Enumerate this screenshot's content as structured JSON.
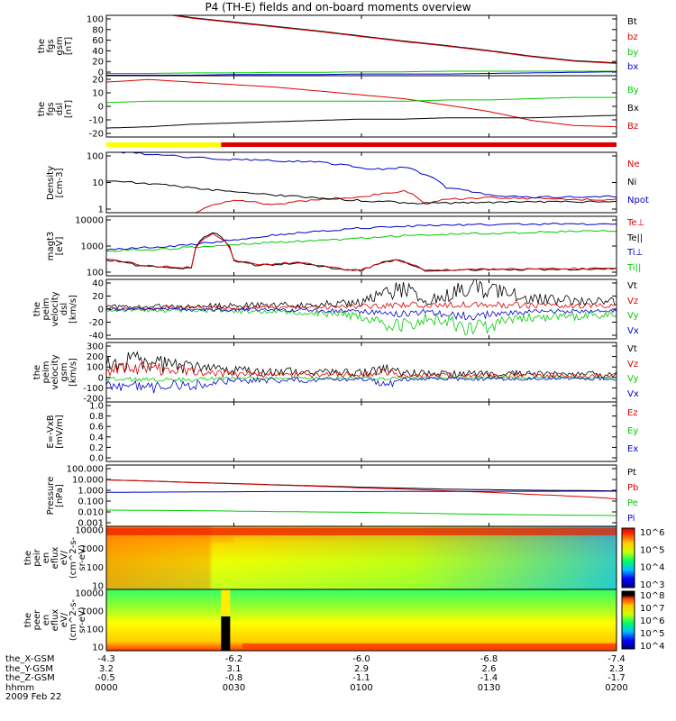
{
  "title": "P4 (TH-E) fields and on-board moments overview",
  "date_label": "2009 Feb 22",
  "colors": {
    "black": "#000000",
    "red": "#dd0000",
    "green": "#00cc00",
    "blue": "#0000cc",
    "yellow": "#ffff00"
  },
  "time_axis": {
    "tick_labels": [
      {
        "name": "the_X-GSM",
        "values": [
          "-4.3",
          "-6.2",
          "-6.0",
          "-6.8",
          "-7.4"
        ]
      },
      {
        "name": "the_Y-GSM",
        "values": [
          "3.2",
          "3.1",
          "2.9",
          "2.6",
          "2.3"
        ]
      },
      {
        "name": "the_Z-GSM",
        "values": [
          "-0.5",
          "-0.8",
          "-1.1",
          "-1.4",
          "-1.7"
        ]
      },
      {
        "name": "hhmm",
        "values": [
          "0000",
          "0030",
          "0100",
          "0130",
          "0200"
        ]
      }
    ]
  },
  "chart_data": [
    {
      "id": "fgs_gsm",
      "type": "line",
      "ylabel_lines": [
        "the",
        "fgs",
        "gsm",
        "[nT]"
      ],
      "yticks": [
        "100",
        "80",
        "60",
        "40",
        "20",
        "0"
      ],
      "ylim": [
        -5,
        103
      ],
      "legend": [
        {
          "label": "Bt",
          "color": "black"
        },
        {
          "label": "bz",
          "color": "red"
        },
        {
          "label": "by",
          "color": "green"
        },
        {
          "label": "bx",
          "color": "blue"
        }
      ],
      "x": [
        0,
        10,
        20,
        30,
        40,
        50,
        60,
        70,
        80,
        90,
        100,
        110,
        120
      ],
      "series": [
        {
          "name": "Bt",
          "color": "black",
          "values": [
            130,
            110,
            99,
            91,
            83,
            75,
            66,
            57,
            49,
            40,
            30,
            22,
            18
          ]
        },
        {
          "name": "bz",
          "color": "red",
          "values": [
            129,
            109,
            98,
            90,
            82,
            74,
            65,
            56,
            48,
            39,
            29,
            21,
            17
          ]
        },
        {
          "name": "by",
          "color": "green",
          "values": [
            -1,
            -1,
            0,
            0,
            1,
            1,
            2,
            2,
            3,
            3,
            3,
            3,
            3
          ]
        },
        {
          "name": "bx",
          "color": "blue",
          "values": [
            -4,
            -4,
            -4,
            -3,
            -3,
            -3,
            -2,
            -2,
            -2,
            -1,
            0,
            1,
            2
          ]
        }
      ]
    },
    {
      "id": "fgs_dsl",
      "type": "line",
      "ylabel_lines": [
        "the",
        "fgs",
        "dsl",
        "[nT]"
      ],
      "yticks": [
        "20",
        "10",
        "0",
        "-10",
        "-20"
      ],
      "ylim": [
        -25,
        23
      ],
      "legend": [
        {
          "label": "By",
          "color": "green"
        },
        {
          "label": "Bx",
          "color": "black"
        },
        {
          "label": "Bz",
          "color": "red"
        }
      ],
      "x": [
        0,
        10,
        20,
        30,
        40,
        50,
        60,
        70,
        80,
        90,
        100,
        110,
        120
      ],
      "series": [
        {
          "name": "Bz",
          "color": "red",
          "values": [
            18,
            20,
            18,
            16,
            14,
            11,
            8,
            5,
            0,
            -5,
            -12,
            -16,
            -17
          ]
        },
        {
          "name": "By",
          "color": "green",
          "values": [
            2,
            3,
            3,
            3,
            3,
            3,
            3,
            3,
            4,
            4,
            5,
            6,
            6
          ]
        },
        {
          "name": "Bx",
          "color": "black",
          "values": [
            -18,
            -17,
            -15,
            -14,
            -13,
            -12,
            -11,
            -11,
            -10,
            -10,
            -10,
            -9,
            -8
          ]
        }
      ],
      "status_bar": [
        {
          "from": 0,
          "to": 27,
          "color": "yellow"
        },
        {
          "from": 27,
          "to": 120,
          "color": "red"
        }
      ]
    },
    {
      "id": "density",
      "type": "line",
      "yscale": "log",
      "ylabel_lines": [
        "Density",
        "[cm-3]"
      ],
      "yticks": [
        "100",
        "10",
        "1"
      ],
      "ylim_log10": [
        -0.25,
        2.25
      ],
      "legend": [
        {
          "label": "Ne",
          "color": "red"
        },
        {
          "label": "Ni",
          "color": "black"
        },
        {
          "label": "Npot",
          "color": "blue"
        }
      ],
      "x": [
        0,
        10,
        20,
        30,
        40,
        50,
        60,
        66,
        70,
        75,
        80,
        90,
        100,
        110,
        120
      ],
      "series": [
        {
          "name": "Ne",
          "color": "red",
          "values": [
            0.2,
            0.3,
            0.4,
            1.8,
            1.2,
            2.0,
            2.6,
            3.5,
            4.5,
            1.2,
            2.0,
            2.4,
            2.2,
            2.0,
            2.0
          ]
        },
        {
          "name": "Ni",
          "color": "black",
          "values": [
            12,
            9,
            6,
            4,
            3,
            2.2,
            1.8,
            1.6,
            1.5,
            1.4,
            1.4,
            1.5,
            1.6,
            1.6,
            1.7
          ]
        },
        {
          "name": "Npot",
          "color": "blue",
          "values": [
            200,
            150,
            110,
            90,
            80,
            70,
            40,
            35,
            45,
            20,
            6,
            3,
            2.5,
            2.6,
            2.7
          ]
        }
      ]
    },
    {
      "id": "temperature",
      "type": "line",
      "yscale": "log",
      "ylabel_lines": [
        "magt3",
        "[eV]"
      ],
      "yticks": [
        "10000",
        "1000",
        "100"
      ],
      "ylim_log10": [
        1.65,
        4.05
      ],
      "legend": [
        {
          "label": "Te⊥",
          "color": "red"
        },
        {
          "label": "Te||",
          "color": "black"
        },
        {
          "label": "Ti⊥",
          "color": "blue"
        },
        {
          "label": "Ti||",
          "color": "green"
        }
      ],
      "x": [
        0,
        8,
        13,
        20,
        25,
        30,
        35,
        45,
        55,
        60,
        68,
        75,
        90,
        105,
        120
      ],
      "series": [
        {
          "name": "Ti⊥",
          "color": "blue",
          "values": [
            500,
            600,
            650,
            800,
            1000,
            1300,
            1600,
            2400,
            3200,
            3800,
            4300,
            4700,
            5200,
            5500,
            5500
          ]
        },
        {
          "name": "Ti||",
          "color": "green",
          "values": [
            450,
            500,
            520,
            650,
            700,
            800,
            900,
            1100,
            1300,
            1500,
            1800,
            2000,
            2300,
            2700,
            2900
          ]
        },
        {
          "name": "Te||",
          "color": "black",
          "values": [
            200,
            110,
            100,
            90,
            2500,
            180,
            120,
            140,
            80,
            70,
            200,
            70,
            80,
            80,
            85
          ]
        },
        {
          "name": "Te⊥",
          "color": "red",
          "values": [
            210,
            120,
            105,
            95,
            2300,
            190,
            130,
            150,
            85,
            75,
            190,
            75,
            85,
            85,
            90
          ]
        }
      ]
    },
    {
      "id": "peim_velocity_dsl",
      "type": "line",
      "ylabel_lines": [
        "the",
        "peim",
        "velocity",
        "dsl",
        "[km/s]"
      ],
      "yticks": [
        "40",
        "20",
        "0",
        "-20",
        "-40"
      ],
      "ylim": [
        -42,
        42
      ],
      "legend": [
        {
          "label": "Vt",
          "color": "black"
        },
        {
          "label": "Vz",
          "color": "red"
        },
        {
          "label": "Vy",
          "color": "green"
        },
        {
          "label": "Vx",
          "color": "blue"
        }
      ],
      "x": [
        0,
        10,
        20,
        30,
        40,
        50,
        60,
        66,
        72,
        75,
        80,
        86,
        92,
        100,
        110,
        120
      ],
      "series": [
        {
          "name": "Vt",
          "color": "black",
          "values": [
            3,
            4,
            4,
            5,
            6,
            7,
            9,
            25,
            30,
            12,
            20,
            33,
            25,
            15,
            12,
            10
          ]
        },
        {
          "name": "Vz",
          "color": "red",
          "values": [
            1,
            1,
            2,
            2,
            2,
            3,
            4,
            5,
            6,
            4,
            6,
            8,
            6,
            5,
            5,
            4
          ]
        },
        {
          "name": "Vy",
          "color": "green",
          "values": [
            -1,
            -2,
            -2,
            -3,
            -4,
            -6,
            -10,
            -22,
            -25,
            -12,
            -18,
            -28,
            -20,
            -12,
            -10,
            -8
          ]
        },
        {
          "name": "Vx",
          "color": "blue",
          "values": [
            0,
            0,
            -1,
            -1,
            -1,
            -2,
            -3,
            -6,
            -7,
            -3,
            -8,
            -10,
            -6,
            -4,
            -3,
            -2
          ]
        }
      ]
    },
    {
      "id": "peim_velocity_gsm",
      "type": "line",
      "ylabel_lines": [
        "the",
        "peim",
        "velocity",
        "gsm",
        "[km/s]"
      ],
      "yticks": [
        "300",
        "200",
        "100",
        "0",
        "-100",
        "-200"
      ],
      "ylim": [
        -220,
        320
      ],
      "legend": [
        {
          "label": "Vt",
          "color": "black"
        },
        {
          "label": "Vz",
          "color": "red"
        },
        {
          "label": "Vy",
          "color": "green"
        },
        {
          "label": "Vx",
          "color": "blue"
        }
      ],
      "x": [
        0,
        5,
        10,
        15,
        20,
        25,
        30,
        40,
        50,
        60,
        66,
        70,
        80,
        90,
        100,
        110,
        120
      ],
      "series": [
        {
          "name": "Vt",
          "color": "black",
          "values": [
            120,
            140,
            150,
            110,
            100,
            70,
            60,
            55,
            50,
            45,
            70,
            40,
            35,
            35,
            35,
            30,
            30
          ]
        },
        {
          "name": "Vz",
          "color": "red",
          "values": [
            70,
            80,
            85,
            70,
            65,
            40,
            35,
            30,
            30,
            28,
            50,
            25,
            22,
            22,
            22,
            20,
            20
          ]
        },
        {
          "name": "Vy",
          "color": "green",
          "values": [
            -10,
            -15,
            -20,
            -15,
            -20,
            -10,
            -5,
            -5,
            -5,
            0,
            -10,
            0,
            0,
            0,
            0,
            0,
            0
          ]
        },
        {
          "name": "Vx",
          "color": "blue",
          "values": [
            -60,
            -80,
            -90,
            -60,
            -70,
            -40,
            -30,
            -25,
            -20,
            -15,
            -60,
            -12,
            -10,
            -10,
            -10,
            -8,
            -8
          ]
        }
      ]
    },
    {
      "id": "efield",
      "type": "line",
      "ylabel_lines": [
        "E=-VxB",
        "[mV/m]"
      ],
      "yticks": [
        "1.0",
        "0.8",
        "0.6",
        "0.4",
        "0.2",
        "0.0"
      ],
      "ylim": [
        0,
        1
      ],
      "legend": [
        {
          "label": "Ez",
          "color": "red"
        },
        {
          "label": "Ey",
          "color": "green"
        },
        {
          "label": "Ex",
          "color": "blue"
        }
      ],
      "series": []
    },
    {
      "id": "pressure",
      "type": "line",
      "yscale": "log",
      "ylabel_lines": [
        "Pressure",
        "[nPa]"
      ],
      "yticks": [
        "100.000",
        "10.000",
        "1.000",
        "0.100",
        "0.010",
        "0.001"
      ],
      "ylim_log10": [
        -3.05,
        2.05
      ],
      "legend": [
        {
          "label": "Pt",
          "color": "black"
        },
        {
          "label": "Pb",
          "color": "red"
        },
        {
          "label": "Pe",
          "color": "green"
        },
        {
          "label": "Pi",
          "color": "blue"
        }
      ],
      "x": [
        0,
        20,
        40,
        60,
        80,
        100,
        120
      ],
      "series": [
        {
          "name": "Pt",
          "color": "black",
          "values": [
            6.5,
            4.0,
            2.5,
            1.6,
            1.1,
            0.9,
            0.8
          ]
        },
        {
          "name": "Pb",
          "color": "red",
          "values": [
            6.5,
            3.9,
            2.4,
            1.4,
            0.8,
            0.4,
            0.17
          ]
        },
        {
          "name": "Pe",
          "color": "green",
          "values": [
            0.02,
            0.018,
            0.015,
            0.013,
            0.01,
            0.008,
            0.007
          ]
        },
        {
          "name": "Pi",
          "color": "blue",
          "values": [
            0.6,
            0.65,
            0.7,
            0.7,
            0.72,
            0.74,
            0.75
          ]
        }
      ]
    },
    {
      "id": "peir_eflux",
      "type": "heatmap",
      "ylabel_lines": [
        "the",
        "peir",
        "en",
        "eflux",
        "eV/",
        "(cm^2-s-",
        "sr-eV)"
      ],
      "yticks": [
        "10000",
        "1000",
        "100",
        "10"
      ],
      "colorbar_ticks": [
        "10^6",
        "10^5",
        "10^4",
        "10^3"
      ]
    },
    {
      "id": "peer_eflux",
      "type": "heatmap",
      "ylabel_lines": [
        "the",
        "peer",
        "en",
        "eflux",
        "eV/",
        "(cm^2-s-",
        "sr-eV)"
      ],
      "yticks": [
        "10000",
        "1000",
        "100",
        "10"
      ],
      "colorbar_ticks": [
        "10^8",
        "10^7",
        "10^6",
        "10^5",
        "10^4"
      ]
    }
  ]
}
